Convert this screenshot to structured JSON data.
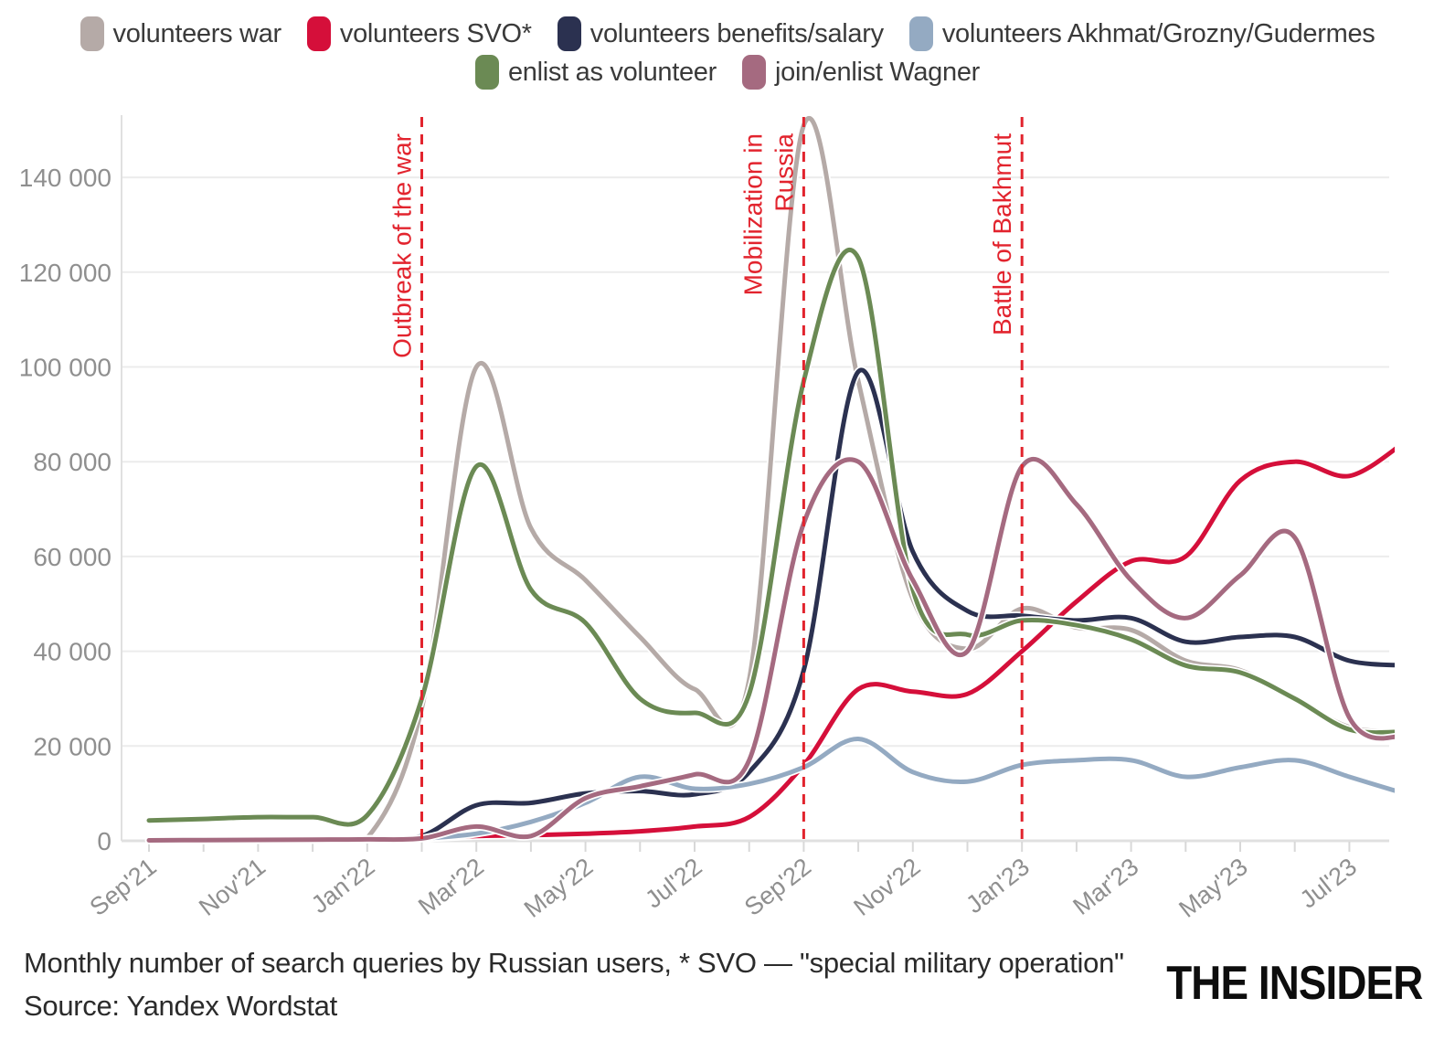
{
  "legend": {
    "items": [
      {
        "label": "volunteers war",
        "color": "#b5aaa7",
        "row": 1
      },
      {
        "label": "volunteers SVO*",
        "color": "#d50f3a",
        "row": 1
      },
      {
        "label": "volunteers benefits/salary",
        "color": "#2b3150",
        "row": 1
      },
      {
        "label": "volunteers Akhmat/Grozny/Gudermes",
        "color": "#94aac2",
        "row": 1
      },
      {
        "label": "enlist as volunteer",
        "color": "#6b8a54",
        "row": 2
      },
      {
        "label": "join/enlist Wagner",
        "color": "#a56a80",
        "row": 2
      }
    ]
  },
  "chart_data": {
    "type": "line",
    "x": [
      "Sep'21",
      "Oct'21",
      "Nov'21",
      "Dec'21",
      "Jan'22",
      "Feb'22",
      "Mar'22",
      "Apr'22",
      "May'22",
      "Jun'22",
      "Jul'22",
      "Aug'22",
      "Sep'22",
      "Oct'22",
      "Nov'22",
      "Dec'22",
      "Jan'23",
      "Feb'23",
      "Mar'23",
      "Apr'23",
      "May'23",
      "Jun'23",
      "Jul'23",
      "Aug'23"
    ],
    "x_label_indices": [
      0,
      2,
      4,
      6,
      8,
      10,
      12,
      14,
      16,
      18,
      20,
      22
    ],
    "yticks": [
      0,
      20000,
      40000,
      60000,
      80000,
      100000,
      120000,
      140000
    ],
    "ytick_labels": [
      "0",
      "20 000",
      "40 000",
      "60 000",
      "80 000",
      "100 000",
      "120 000",
      "140 000"
    ],
    "ylim": [
      0,
      152000
    ],
    "grid": true,
    "legend_position": "top",
    "series": [
      {
        "name": "volunteers war",
        "color": "#b5aaa7",
        "values": [
          300,
          300,
          400,
          400,
          600,
          28000,
          100000,
          66000,
          55000,
          43000,
          32000,
          34000,
          151000,
          97000,
          51000,
          40500,
          49000,
          45000,
          44500,
          38000,
          36000,
          30000,
          24000,
          23000
        ]
      },
      {
        "name": "volunteers SVO*",
        "color": "#d50f3a",
        "values": [
          100,
          100,
          150,
          200,
          250,
          500,
          1000,
          1200,
          1500,
          2000,
          3000,
          5000,
          16000,
          32000,
          31500,
          31000,
          40000,
          50500,
          59000,
          60000,
          76000,
          80000,
          77000,
          84000
        ]
      },
      {
        "name": "volunteers benefits/salary",
        "color": "#2b3150",
        "values": [
          200,
          200,
          300,
          300,
          400,
          1000,
          7500,
          8000,
          10000,
          10500,
          9800,
          14500,
          36000,
          99000,
          61000,
          48500,
          47500,
          46500,
          47000,
          42000,
          43000,
          43000,
          38000,
          37000
        ]
      },
      {
        "name": "volunteers Akhmat/Grozny/Gudermes",
        "color": "#94aac2",
        "values": [
          100,
          100,
          200,
          200,
          300,
          500,
          1500,
          4000,
          8000,
          13500,
          11000,
          12000,
          15500,
          21500,
          14500,
          12500,
          16000,
          17000,
          17000,
          13500,
          15500,
          17000,
          13500,
          10000
        ]
      },
      {
        "name": "enlist as volunteer",
        "color": "#6b8a54",
        "values": [
          4300,
          4600,
          5000,
          5000,
          5400,
          30000,
          79000,
          53000,
          46000,
          30000,
          27000,
          31000,
          97000,
          123000,
          53000,
          43500,
          46500,
          45500,
          42500,
          37000,
          35500,
          30000,
          23500,
          23000
        ]
      },
      {
        "name": "join/enlist Wagner",
        "color": "#a56a80",
        "values": [
          100,
          150,
          200,
          250,
          300,
          500,
          3000,
          1000,
          9000,
          11500,
          14000,
          17000,
          67000,
          80000,
          55000,
          40000,
          79000,
          71000,
          55000,
          47000,
          56000,
          64000,
          26000,
          22000
        ]
      }
    ],
    "annotations": [
      {
        "label": "Outbreak of the war",
        "lines": [
          "Outbreak of the war"
        ],
        "x_index": 5,
        "color": "#e2242e"
      },
      {
        "label": "Mobilization in Russia",
        "lines": [
          "Mobilization in",
          "Russia"
        ],
        "x_index": 12,
        "color": "#e2242e"
      },
      {
        "label": "Battle of Bakhmut",
        "lines": [
          "Battle of Bakhmut"
        ],
        "x_index": 16,
        "color": "#e2242e"
      }
    ],
    "colors": {
      "gridline": "#ececec",
      "axis_line": "#e0e0e0",
      "tick_mark": "#d8d8d8",
      "tick_label": "#8f8f8f",
      "annotation": "#e2242e"
    }
  },
  "caption": {
    "line1": "Monthly number of search queries by Russian users, * SVO — \"special military operation\"",
    "line2": "Source: Yandex Wordstat"
  },
  "logo": "THE INSIDER"
}
